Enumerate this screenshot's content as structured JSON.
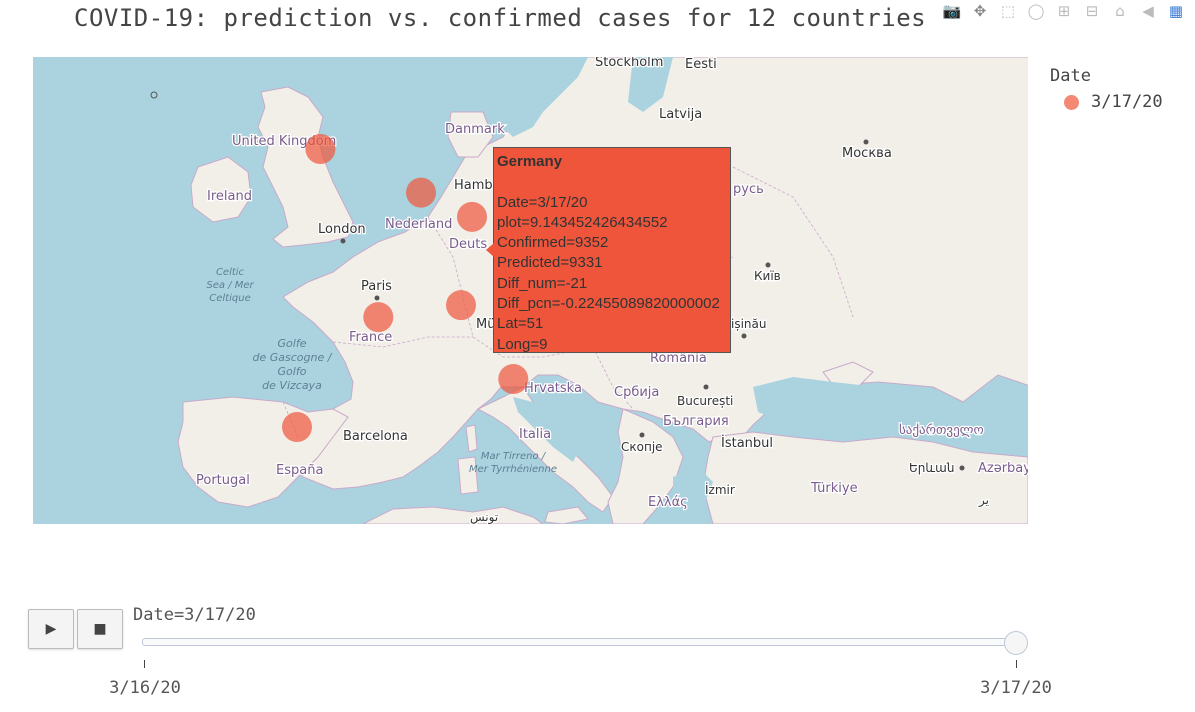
{
  "title": "COVID-19: prediction vs. confirmed cases for 12 countries",
  "modebar": {
    "icons": [
      "camera-icon",
      "pan-icon",
      "box-select-icon",
      "lasso-icon",
      "zoom-in-icon",
      "zoom-out-icon",
      "home-icon",
      "spike-lines-icon",
      "plotly-logo-icon"
    ]
  },
  "legend": {
    "title": "Date",
    "items": [
      {
        "label": "3/17/20",
        "color": "#ef553b"
      }
    ]
  },
  "map": {
    "labels": [
      {
        "id": "stockholm",
        "text": "Stockholm"
      },
      {
        "id": "eesti",
        "text": "Eesti"
      },
      {
        "id": "latvija",
        "text": "Latvija"
      },
      {
        "id": "danmark",
        "text": "Danmark"
      },
      {
        "id": "moskva",
        "text": "Москва"
      },
      {
        "id": "united-kingdom",
        "text": "United Kingdom"
      },
      {
        "id": "ireland",
        "text": "Ireland"
      },
      {
        "id": "hamburg",
        "text": "Hamb"
      },
      {
        "id": "belarus",
        "text": "русь"
      },
      {
        "id": "london",
        "text": "London"
      },
      {
        "id": "nederland",
        "text": "Nederland"
      },
      {
        "id": "deutschland",
        "text": "Deuts"
      },
      {
        "id": "kyiv",
        "text": "Київ"
      },
      {
        "id": "celtic-sea",
        "text": "Celtic Sea / Mer Celtique"
      },
      {
        "id": "paris",
        "text": "Paris"
      },
      {
        "id": "munchen",
        "text": "Mü"
      },
      {
        "id": "chisinau",
        "text": "ișinău"
      },
      {
        "id": "golfe",
        "text": "Golfe de Gascogne / Golfo de Vizcaya"
      },
      {
        "id": "france",
        "text": "France"
      },
      {
        "id": "romania",
        "text": "România"
      },
      {
        "id": "hrvatska",
        "text": "Hrvatska"
      },
      {
        "id": "srbija",
        "text": "Србија"
      },
      {
        "id": "bucuresti",
        "text": "București"
      },
      {
        "id": "barcelona",
        "text": "Barcelona"
      },
      {
        "id": "italia",
        "text": "Italia"
      },
      {
        "id": "bulgaria",
        "text": "България"
      },
      {
        "id": "skopje",
        "text": "Скопје"
      },
      {
        "id": "istanbul",
        "text": "İstanbul"
      },
      {
        "id": "georgia",
        "text": "საქართველო"
      },
      {
        "id": "tyrrhenian",
        "text": "Mar Tirreno / Mer Tyrrhénienne"
      },
      {
        "id": "yerevan",
        "text": "Երևան"
      },
      {
        "id": "azerbaijan",
        "text": "Azərbay"
      },
      {
        "id": "portugal",
        "text": "Portugal"
      },
      {
        "id": "espana",
        "text": "España"
      },
      {
        "id": "izmir",
        "text": "İzmir"
      },
      {
        "id": "turkiye",
        "text": "Türkiye"
      },
      {
        "id": "ellas",
        "text": "Ελλάς"
      },
      {
        "id": "tunis",
        "text": "تونس"
      },
      {
        "id": "iran",
        "text": "یر"
      }
    ],
    "markers": [
      {
        "country": "United Kingdom",
        "lat": 54.0,
        "lon": -2.0
      },
      {
        "country": "Netherlands",
        "lat": 52.1,
        "lon": 5.3
      },
      {
        "country": "Germany",
        "lat": 51.0,
        "lon": 9.0
      },
      {
        "country": "France",
        "lat": 46.2,
        "lon": 2.2
      },
      {
        "country": "Switzerland",
        "lat": 46.8,
        "lon": 8.2
      },
      {
        "country": "Italy",
        "lat": 43.0,
        "lon": 12.0
      },
      {
        "country": "Spain",
        "lat": 40.4,
        "lon": -3.7
      }
    ],
    "marker_color": "#ef553b",
    "attribution_text": "یر"
  },
  "tooltip": {
    "name": "Germany",
    "lines": [
      "Date=3/17/20",
      "plot=9.143452426434552",
      "Confirmed=9352",
      "Predicted=9331",
      "Diff_num=-21",
      "Diff_pcn=-0.22455089820000002",
      "Lat=51",
      "Long=9"
    ]
  },
  "slider": {
    "current_label": "Date=3/17/20",
    "steps": [
      "3/16/20",
      "3/17/20"
    ],
    "active_step": "3/17/20",
    "play_label": "▶",
    "stop_label": "■"
  }
}
